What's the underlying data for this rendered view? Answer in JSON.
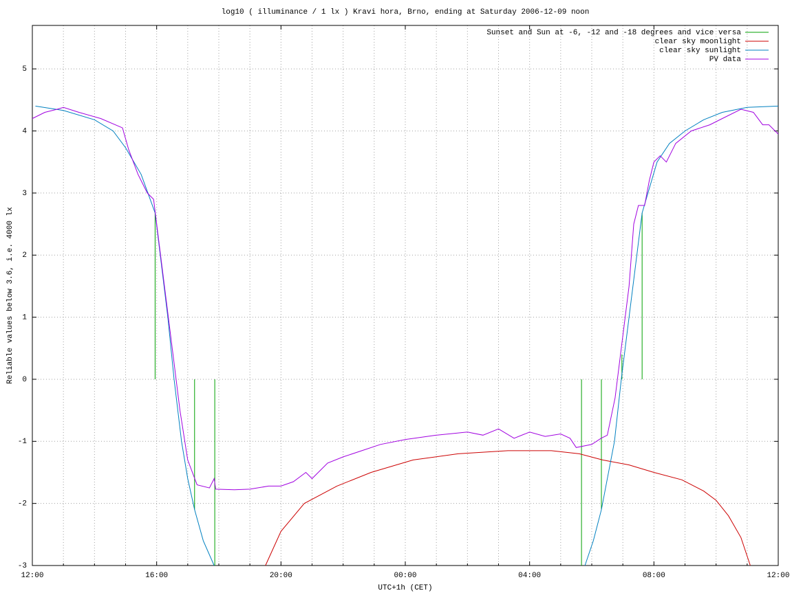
{
  "chart_data": {
    "type": "line",
    "title": "log10 ( illuminance / 1 lx ) Kravi hora, Brno, ending at Saturday 2006-12-09 noon",
    "xlabel": "UTC+1h (CET)",
    "ylabel": "Reliable values below 3.6, i.e. 4000 lx",
    "xlim": [
      12,
      36
    ],
    "ylim": [
      -3,
      5.7
    ],
    "xticks": [
      {
        "value": 12,
        "label": "12:00"
      },
      {
        "value": 16,
        "label": "16:00"
      },
      {
        "value": 20,
        "label": "20:00"
      },
      {
        "value": 24,
        "label": "00:00"
      },
      {
        "value": 28,
        "label": "04:00"
      },
      {
        "value": 32,
        "label": "08:00"
      },
      {
        "value": 36,
        "label": "12:00"
      }
    ],
    "xminorticks": [
      13,
      14,
      15,
      17,
      18,
      19,
      21,
      22,
      23,
      25,
      26,
      27,
      29,
      30,
      31,
      33,
      34,
      35
    ],
    "yticks": [
      -3,
      -2,
      -1,
      0,
      1,
      2,
      3,
      4,
      5
    ],
    "grid": true,
    "legend": "upper right",
    "series": [
      {
        "name": "Sunset and Sun at -6, -12 and -18 degrees and vice versa",
        "color": "#00a000",
        "style": "impulses",
        "x": [
          15.95,
          17.22,
          17.87,
          29.67,
          30.31,
          30.97,
          31.62
        ],
        "values": [
          2.68,
          -2.1,
          -3,
          -3,
          -2.1,
          0.4,
          2.68
        ]
      },
      {
        "name": "clear sky moonlight",
        "color": "#cc0000",
        "style": "line",
        "x": [
          19.5,
          20.0,
          20.75,
          21.8,
          22.9,
          24.25,
          25.7,
          27.3,
          28.7,
          29.6,
          30.35,
          31.2,
          32.0,
          32.9,
          33.6,
          34.0,
          34.4,
          34.8,
          35.1
        ],
        "values": [
          -3,
          -2.45,
          -2.0,
          -1.72,
          -1.5,
          -1.3,
          -1.2,
          -1.15,
          -1.15,
          -1.2,
          -1.3,
          -1.38,
          -1.5,
          -1.62,
          -1.8,
          -1.95,
          -2.2,
          -2.55,
          -3
        ]
      },
      {
        "name": "clear sky sunlight",
        "color": "#0080c0",
        "style": "line",
        "x": [
          12.1,
          13.0,
          14.0,
          14.6,
          15.0,
          15.5,
          15.95,
          16.36,
          16.56,
          16.8,
          17.0,
          17.22,
          17.5,
          17.85,
          24,
          29.78,
          30.05,
          30.31,
          30.73,
          30.95,
          31.2,
          31.62,
          32.1,
          32.5,
          33.0,
          33.6,
          34.2,
          35.0,
          36.0
        ],
        "values": [
          4.4,
          4.33,
          4.18,
          4.0,
          3.73,
          3.3,
          2.68,
          1.0,
          0.0,
          -1.0,
          -1.6,
          -2.1,
          -2.6,
          -3,
          null,
          -3,
          -2.6,
          -2.1,
          -1.0,
          0.0,
          1.0,
          2.68,
          3.5,
          3.8,
          4.0,
          4.18,
          4.3,
          4.38,
          4.4
        ]
      },
      {
        "name": "PV data",
        "color": "#a000e0",
        "style": "line",
        "x": [
          12.0,
          12.4,
          12.8,
          13.0,
          13.5,
          14.2,
          14.9,
          15.1,
          15.4,
          15.7,
          15.9,
          16.0,
          16.25,
          16.5,
          16.75,
          17.0,
          17.3,
          17.7,
          17.85,
          17.9,
          18.5,
          19.0,
          19.6,
          20.0,
          20.4,
          20.8,
          21.0,
          21.5,
          22.0,
          22.6,
          23.2,
          24.0,
          25.0,
          26.0,
          26.5,
          27.0,
          27.5,
          28.0,
          28.5,
          29.0,
          29.3,
          29.5,
          30.0,
          30.3,
          30.5,
          30.75,
          30.95,
          31.2,
          31.35,
          31.5,
          31.7,
          31.85,
          32.0,
          32.2,
          32.4,
          32.7,
          33.2,
          33.8,
          34.2,
          34.8,
          35.2,
          35.5,
          35.7,
          36.0
        ],
        "values": [
          4.2,
          4.3,
          4.35,
          4.38,
          4.3,
          4.2,
          4.05,
          3.7,
          3.3,
          3.0,
          2.9,
          2.5,
          1.5,
          0.5,
          -0.5,
          -1.3,
          -1.7,
          -1.75,
          -1.6,
          -1.77,
          -1.78,
          -1.77,
          -1.72,
          -1.72,
          -1.65,
          -1.5,
          -1.6,
          -1.35,
          -1.25,
          -1.15,
          -1.05,
          -0.97,
          -0.9,
          -0.85,
          -0.9,
          -0.8,
          -0.95,
          -0.85,
          -0.92,
          -0.88,
          -0.95,
          -1.1,
          -1.05,
          -0.95,
          -0.9,
          -0.3,
          0.5,
          1.5,
          2.5,
          2.8,
          2.8,
          3.2,
          3.5,
          3.6,
          3.5,
          3.8,
          4.0,
          4.1,
          4.2,
          4.35,
          4.3,
          4.1,
          4.1,
          3.95
        ]
      }
    ]
  }
}
